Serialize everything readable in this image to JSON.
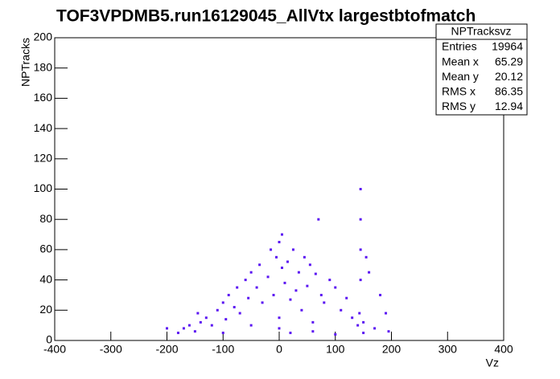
{
  "chart_data": {
    "type": "scatter",
    "title": "TOF3VPDMB5.run16129045_AllVtx largestbtofmatch",
    "xlabel": "Vz",
    "ylabel": "NPTracks",
    "color": "#5b16f2",
    "xlim": [
      -400,
      400
    ],
    "xticks": [
      -400,
      -300,
      -200,
      -100,
      0,
      100,
      200,
      300,
      400
    ],
    "ylim": [
      0,
      200
    ],
    "yticks": [
      0,
      20,
      40,
      60,
      80,
      100,
      120,
      140,
      160,
      180,
      200
    ],
    "x": [
      -180,
      -170,
      -160,
      -150,
      -145,
      -140,
      -130,
      -120,
      -110,
      -100,
      -95,
      -90,
      -80,
      -75,
      -70,
      -60,
      -55,
      -50,
      -40,
      -35,
      -30,
      -20,
      -15,
      -10,
      -5,
      0,
      0,
      5,
      5,
      10,
      15,
      20,
      25,
      30,
      35,
      40,
      45,
      50,
      55,
      60,
      65,
      70,
      75,
      80,
      90,
      100,
      110,
      120,
      130,
      140,
      143,
      145,
      145,
      145,
      145,
      150,
      155,
      160,
      170,
      180,
      190,
      195,
      -200,
      -100,
      -50,
      0,
      20,
      60,
      100,
      150
    ],
    "y": [
      5,
      8,
      10,
      6,
      18,
      12,
      15,
      10,
      20,
      25,
      14,
      30,
      22,
      35,
      18,
      40,
      28,
      45,
      35,
      50,
      25,
      42,
      60,
      30,
      55,
      65,
      15,
      48,
      70,
      38,
      52,
      27,
      60,
      33,
      45,
      20,
      55,
      36,
      50,
      12,
      44,
      80,
      30,
      25,
      40,
      35,
      20,
      28,
      15,
      10,
      18,
      40,
      60,
      80,
      100,
      12,
      55,
      45,
      8,
      30,
      18,
      6,
      8,
      5,
      10,
      8,
      5,
      6,
      4,
      5
    ],
    "stats": {
      "title": "NPTracksvz",
      "labels": [
        "Entries",
        "Mean x",
        "Mean y",
        "RMS x",
        "RMS y"
      ],
      "values": [
        19964,
        65.29,
        20.12,
        86.35,
        12.94
      ]
    }
  }
}
